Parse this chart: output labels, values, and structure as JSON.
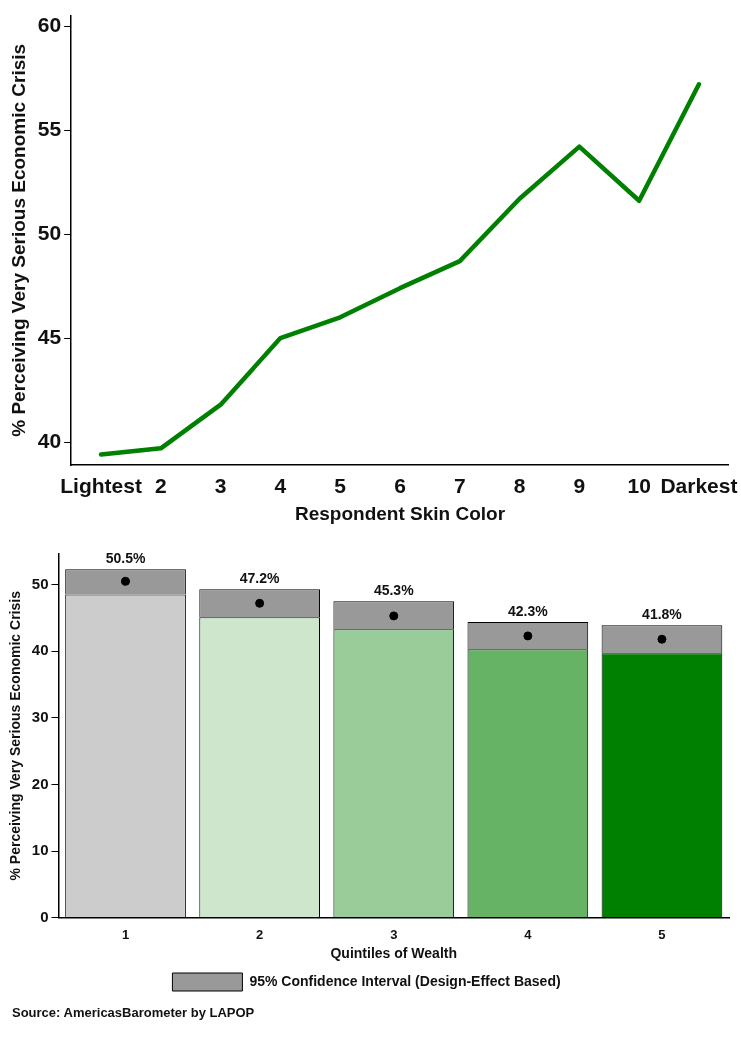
{
  "chart_data": [
    {
      "type": "line",
      "xlabel": "Respondent Skin Color",
      "ylabel": "% Perceiving Very Serious Economic Crisis",
      "categories": [
        "Lightest",
        "2",
        "3",
        "4",
        "5",
        "6",
        "7",
        "8",
        "9",
        "10",
        "Darkest"
      ],
      "series": [
        {
          "color": "#008000",
          "values": [
            39.4,
            39.7,
            41.8,
            45.0,
            46.0,
            47.4,
            48.7,
            51.7,
            54.2,
            51.6,
            57.2
          ]
        }
      ],
      "ylim": [
        38.9,
        60.5
      ],
      "yticks": [
        40,
        45,
        50,
        55,
        60
      ],
      "grid": false,
      "legend": false,
      "marker": "none",
      "line_style": "solid"
    },
    {
      "type": "bar",
      "stacked": true,
      "xlabel": "Quintiles of Wealth",
      "ylabel": "% Perceiving Very Serious Economic Crisis",
      "categories": [
        "1",
        "2",
        "3",
        "4",
        "5"
      ],
      "series": [
        {
          "colors": [
            "#cccccc",
            "#cde6cc",
            "#99cc99",
            "#66b366",
            "#008000"
          ],
          "values": [
            48.5,
            45.1,
            43.3,
            40.3,
            39.7
          ]
        },
        {
          "name": "95% Confidence Interval (Design-Effect Based)",
          "color": "#999999",
          "values": [
            3.8,
            4.2,
            4.2,
            4.1,
            4.2
          ]
        },
        {
          "type": "scatter",
          "color": "#000000",
          "x": [
            "1",
            "2",
            "3",
            "4",
            "5"
          ],
          "values": [
            50.5,
            47.2,
            45.3,
            42.3,
            41.8
          ],
          "value_labels": [
            "50.5%",
            "47.2%",
            "45.3%",
            "42.3%",
            "41.8%"
          ]
        }
      ],
      "ylim": [
        0,
        54.6
      ],
      "yticks": [
        0,
        10,
        20,
        30,
        40,
        50
      ],
      "grid": false,
      "legend": "bottom",
      "marker": "circle",
      "annotations": [
        "Source: AmericasBarometer by LAPOP"
      ]
    }
  ]
}
